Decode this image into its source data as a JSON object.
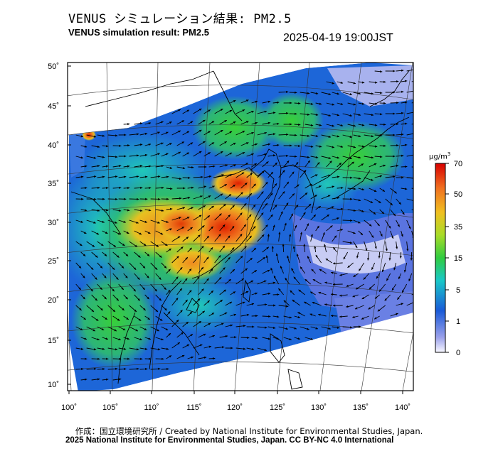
{
  "header": {
    "title_jp": "VENUS シミュレーション結果: PM2.5",
    "title_en": "VENUS simulation result: PM2.5",
    "timestamp": "2025-04-19 19:00JST"
  },
  "map": {
    "lat_labels": [
      "50˚",
      "45˚",
      "40˚",
      "35˚",
      "30˚",
      "25˚",
      "20˚",
      "15˚",
      "10˚"
    ],
    "lon_labels": [
      "100˚",
      "105˚",
      "110˚",
      "115˚",
      "120˚",
      "125˚",
      "130˚",
      "135˚",
      "140˚"
    ],
    "lat_range": [
      9,
      51
    ],
    "lon_range": [
      100,
      142
    ],
    "variable": "PM2.5"
  },
  "colorbar": {
    "unit": "μg/m",
    "unit_sup": "3",
    "ticks": [
      "70",
      "50",
      "35",
      "15",
      "5",
      "1",
      "0"
    ],
    "colors": [
      "#f8f8ff",
      "#6070e0",
      "#1a6ad8",
      "#19c8c8",
      "#3ad23a",
      "#b4dc28",
      "#f0c020",
      "#f07020",
      "#d80000"
    ]
  },
  "footer": {
    "credit_jp": "作成：国立環境研究所 / Created by National Institute for Environmental Studies, Japan.",
    "copyright": "2025 National Institute for Environmental Studies, Japan. CC BY-NC 4.0 International"
  }
}
